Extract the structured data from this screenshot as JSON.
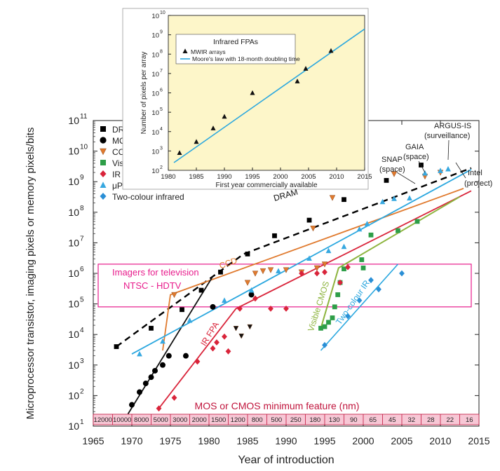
{
  "chart_data": [
    {
      "type": "scatter",
      "title": "",
      "xlabel": "Year of introduction",
      "ylabel": "Microprocessor transistor, imaging pixels or memory pixels/bits",
      "xlim": [
        1965,
        2015
      ],
      "ylim_log10": [
        1,
        11
      ],
      "x_ticks": [
        "1965",
        "1970",
        "1975",
        "1980",
        "1985",
        "1990",
        "1995",
        "2000",
        "2005",
        "2010",
        "2015"
      ],
      "y_ticks": [
        "10",
        "10",
        "10",
        "10",
        "10",
        "10",
        "10",
        "10",
        "10",
        "10",
        "10"
      ],
      "y_tick_exponents": [
        "1",
        "2",
        "3",
        "4",
        "5",
        "6",
        "7",
        "8",
        "9",
        "10",
        "11"
      ],
      "legend_position": "top-left",
      "series": [
        {
          "name": "DRAM",
          "marker": "square",
          "color": "#000000",
          "points": [
            [
              1968,
              4000.0
            ],
            [
              1972.5,
              16000.0
            ],
            [
              1976.5,
              65000.0
            ],
            [
              1979,
              280000.0
            ],
            [
              1981.5,
              1100000.0
            ],
            [
              1985,
              4300000.0
            ],
            [
              1988.5,
              17000000.0
            ],
            [
              1993,
              55000000.0
            ],
            [
              1997.5,
              260000000.0
            ],
            [
              2003,
              1100000000.0
            ],
            [
              2007.5,
              3500000000.0
            ]
          ]
        },
        {
          "name": "MOS",
          "marker": "circle",
          "color": "#000000",
          "points": [
            [
              1970,
              50
            ],
            [
              1971,
              130
            ],
            [
              1971.8,
              250
            ],
            [
              1972.5,
              400
            ],
            [
              1973,
              650
            ],
            [
              1974,
              1000
            ],
            [
              1974.8,
              2000
            ],
            [
              1977,
              2000
            ],
            [
              1980.5,
              80000.0
            ],
            [
              1985.5,
              200000.0
            ]
          ]
        },
        {
          "name": "CCD",
          "marker": "triangle-down",
          "color": "#e07a2e",
          "points": [
            [
              1975.5,
              200000.0
            ],
            [
              1985,
              500000.0
            ],
            [
              1986,
              1000000.0
            ],
            [
              1987,
              1200000.0
            ],
            [
              1988,
              1300000.0
            ],
            [
              1990,
              1300000.0
            ],
            [
              1992,
              1100000.0
            ],
            [
              1994,
              1500000.0
            ],
            [
              1995,
              2000000.0
            ],
            [
              1993.5,
              30000000.0
            ],
            [
              1996,
              300000000.0
            ],
            [
              2004,
              1800000000.0
            ],
            [
              2008,
              1500000000.0
            ],
            [
              2010,
              2000000000.0
            ]
          ]
        },
        {
          "name": "Visible CMOS",
          "marker": "square",
          "color": "#2e9e48",
          "points": [
            [
              1994.5,
              16000.0
            ],
            [
              1995,
              18000.0
            ],
            [
              1995.5,
              25000.0
            ],
            [
              1996,
              35000.0
            ],
            [
              1996.3,
              80000.0
            ],
            [
              1996.7,
              200000.0
            ],
            [
              1997,
              500000.0
            ],
            [
              1997.5,
              1400000.0
            ],
            [
              1999.8,
              2800000.0
            ],
            [
              2000,
              1500000.0
            ],
            [
              2001,
              18000000.0
            ],
            [
              2004.5,
              25000000.0
            ],
            [
              2007,
              50000000.0
            ]
          ]
        },
        {
          "name": "IR FPA",
          "marker": "diamond",
          "color": "#d9243a",
          "points": [
            [
              1973.5,
              38
            ],
            [
              1975.5,
              85
            ],
            [
              1978.5,
              1300
            ],
            [
              1980.5,
              3500
            ],
            [
              1981,
              5500
            ],
            [
              1982,
              8500
            ],
            [
              1982.5,
              2800
            ],
            [
              1984,
              70000.0
            ],
            [
              1986,
              150000.0
            ],
            [
              1988,
              70000.0
            ],
            [
              1990,
              70000.0
            ],
            [
              1992,
              1000000.0
            ],
            [
              1994,
              1000000.0
            ],
            [
              1995,
              1100000.0
            ],
            [
              1997,
              500000.0
            ],
            [
              1998,
              1600000.0
            ]
          ]
        },
        {
          "name": "μProc. transistors",
          "marker": "triangle-up",
          "color": "#37a8e0",
          "points": [
            [
              1971,
              2300
            ],
            [
              1974,
              6000
            ],
            [
              1977.5,
              29000.0
            ],
            [
              1982,
              130000.0
            ],
            [
              1985.5,
              280000.0
            ],
            [
              1989,
              1200000.0
            ],
            [
              1993,
              3100000.0
            ],
            [
              1995.5,
              5500000.0
            ],
            [
              1997.5,
              7500000.0
            ],
            [
              1999.5,
              28000000.0
            ],
            [
              2000.5,
              42000000.0
            ],
            [
              2002.5,
              220000000.0
            ],
            [
              2004,
              280000000.0
            ],
            [
              2006,
              290000000.0
            ],
            [
              2008,
              1900000000.0
            ],
            [
              2010,
              2300000000.0
            ],
            [
              2011,
              2600000000.0
            ]
          ]
        },
        {
          "name": "Two-colour infrared",
          "marker": "diamond",
          "color": "#2a8fd6",
          "points": [
            [
              1995,
              4500
            ],
            [
              1998,
              40000.0
            ],
            [
              1999.5,
              130000.0
            ],
            [
              2001,
              600000.0
            ],
            [
              2002,
              300000.0
            ],
            [
              2005,
              1000000.0
            ]
          ]
        }
      ],
      "trend_lines": [
        {
          "label": "DRAM",
          "style": "dashed",
          "color": "#000000"
        },
        {
          "label": "CCD",
          "style": "solid",
          "color": "#e07a2e"
        },
        {
          "label": "IR FPA",
          "style": "solid",
          "color": "#d9243a"
        },
        {
          "label": "Visible CMOS",
          "style": "solid",
          "color": "#8db43e"
        },
        {
          "label": "Two-colour IR",
          "style": "solid",
          "color": "#2aa7df"
        }
      ],
      "black_triangles": [
        [
          1983.5,
          16000.0
        ],
        [
          1984.2,
          9000
        ],
        [
          1985.3,
          18000.0
        ]
      ],
      "box": {
        "title": "Imagers for television",
        "subtitle": "NTSC - HDTV",
        "y_range": [
          80000.0,
          2000000.0
        ],
        "color": "#e81c8c"
      },
      "callouts": [
        "ARGUS-IS",
        "(surveillance)",
        "GAIA",
        "(space)",
        "SNAP",
        "(space)",
        "Intel",
        "(project)"
      ],
      "feature_strip": {
        "label": "MOS or CMOS minimum feature (nm)",
        "cells": [
          "12000",
          "10000",
          "8000",
          "5000",
          "3000",
          "2000",
          "1500",
          "1200",
          "800",
          "500",
          "250",
          "180",
          "130",
          "90",
          "65",
          "45",
          "32",
          "28",
          "22",
          "16"
        ],
        "fill": "#f7c7d5",
        "color": "#c0143c"
      }
    },
    {
      "type": "scatter",
      "title": "Infrared FPAs",
      "xlabel": "First year commercially available",
      "ylabel": "Number of pixels per array",
      "xlim": [
        1980,
        2015
      ],
      "ylim_log10": [
        2,
        10
      ],
      "x_ticks": [
        "1980",
        "1985",
        "1990",
        "1995",
        "2000",
        "2005",
        "2010",
        "2015"
      ],
      "y_ticks": [
        "10",
        "10",
        "10",
        "10",
        "10",
        "10",
        "10",
        "10",
        "10"
      ],
      "y_tick_exponents": [
        "2",
        "3",
        "4",
        "5",
        "6",
        "7",
        "8",
        "9",
        "10"
      ],
      "background": "#fdf6c9",
      "series": [
        {
          "name": "MWIR arrays",
          "marker": "triangle-up",
          "color": "#000000",
          "points": [
            [
              1982,
              800
            ],
            [
              1985,
              3000
            ],
            [
              1988,
              15000.0
            ],
            [
              1990,
              60000.0
            ],
            [
              1995,
              1000000.0
            ],
            [
              2003,
              4000000.0
            ],
            [
              2004.5,
              18000000.0
            ],
            [
              2009,
              150000000.0
            ]
          ]
        },
        {
          "name": "Moore's law with 18-month doubling time",
          "marker": "line",
          "color": "#2aa7df",
          "line": [
            [
              1981,
              250
            ],
            [
              2015,
              2000000000.0
            ]
          ]
        }
      ]
    }
  ]
}
